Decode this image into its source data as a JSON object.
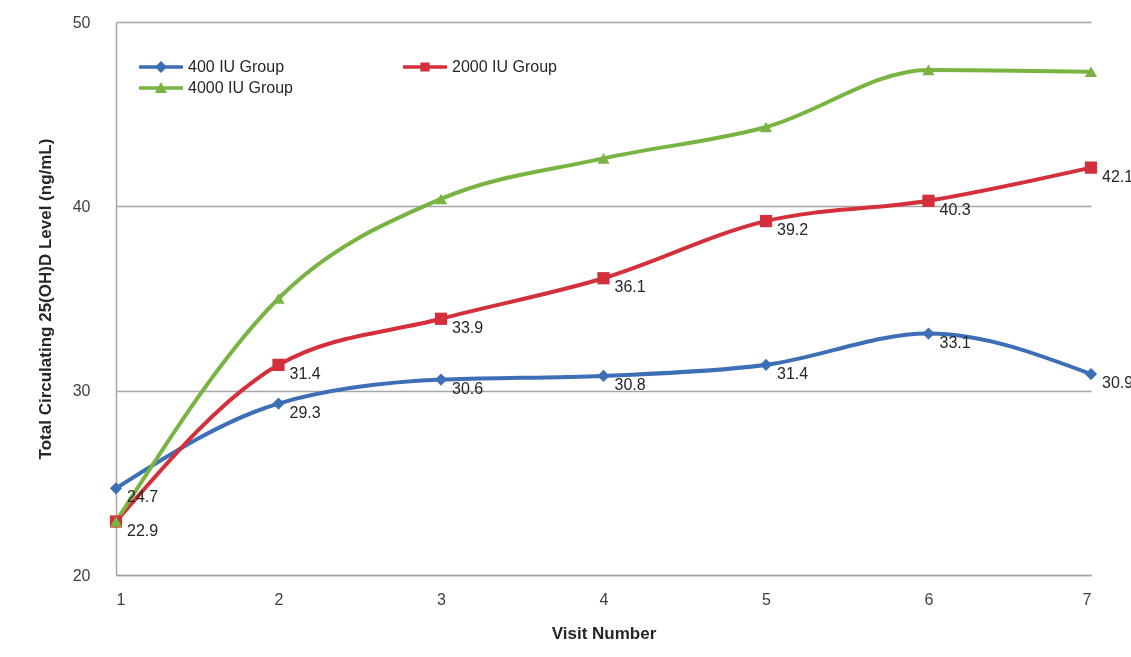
{
  "chart_data": {
    "type": "line",
    "xlabel": "Visit Number",
    "ylabel": "Total Circulating 25(OH)D Level (ng/mL)",
    "x": [
      1,
      2,
      3,
      4,
      5,
      6,
      7
    ],
    "xlim": [
      1,
      7
    ],
    "xticks": [
      1,
      2,
      3,
      4,
      5,
      6,
      7
    ],
    "ylim": [
      20,
      50
    ],
    "yticks": [
      20,
      30,
      40,
      50
    ],
    "grid": "y",
    "legend": "top left",
    "series": [
      {
        "name": "400 IU Group",
        "color": "#3d6fb6",
        "marker": "diamond",
        "values": [
          24.7,
          29.3,
          30.6,
          30.8,
          31.4,
          33.1,
          30.9
        ],
        "value_labels": [
          "24.7",
          "29.3",
          "30.6",
          "30.8",
          "31.4",
          "33.1",
          "30.9"
        ]
      },
      {
        "name": "2000 IU Group",
        "color": "#d3303b",
        "marker": "square",
        "values": [
          22.9,
          31.4,
          33.9,
          36.1,
          39.2,
          40.3,
          42.1
        ],
        "value_labels": [
          "22.9",
          "31.4",
          "33.9",
          "36.1",
          "39.2",
          "40.3",
          "42.1"
        ]
      },
      {
        "name": "4000 IU Group",
        "color": "#79b443",
        "marker": "triangle",
        "values": [
          22.9,
          35.0,
          40.4,
          42.6,
          44.3,
          47.4,
          47.3
        ]
      }
    ]
  }
}
